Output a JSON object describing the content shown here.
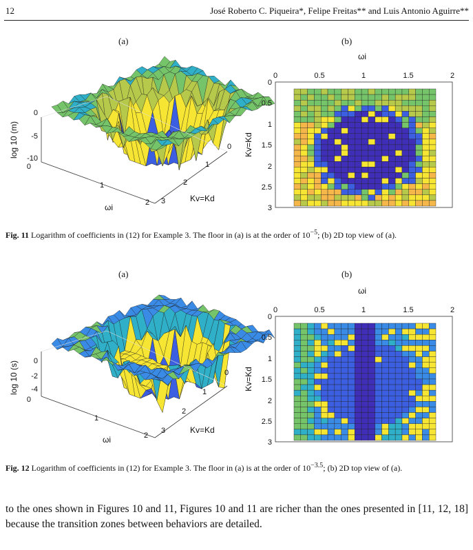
{
  "header": {
    "page_number": "12",
    "authors": "José Roberto C. Piqueira*, Felipe Freitas** and Luis Antonio Aguirre**"
  },
  "figures": [
    {
      "panel_a_label": "(a)",
      "panel_b_label": "(b)",
      "surface_zlabel": "log 10 (m)",
      "surface_zticks": [
        "0",
        "-5",
        "-10"
      ],
      "surface_zero_tick": "0",
      "surface_xticks": [
        "1",
        "2"
      ],
      "surface_xlabel": "ωi",
      "surface_yticks": [
        "0",
        "1",
        "2",
        "3"
      ],
      "surface_ylabel": "Kv=Kd",
      "top_xlabel": "ωi",
      "top_xticks": [
        "0",
        "0.5",
        "1",
        "1.5",
        "2"
      ],
      "top_ylabel": "Kv=Kd",
      "top_yticks": [
        "0",
        "0.5",
        "1",
        "1.5",
        "2",
        "2.5",
        "3"
      ],
      "caption_label": "Fig. 11",
      "caption_text": "Logarithm of coefficients in (12) for Example 3. The floor in (a) is at the order of 10",
      "caption_exp": "−5",
      "caption_tail": "; (b) 2D top view of (a)."
    },
    {
      "panel_a_label": "(a)",
      "panel_b_label": "(b)",
      "surface_zlabel": "log 10 (s)",
      "surface_zticks": [
        "0",
        "-2",
        "-4"
      ],
      "surface_zero_tick": "0",
      "surface_xticks": [
        "1",
        "2"
      ],
      "surface_xlabel": "ωi",
      "surface_yticks": [
        "0",
        "1",
        "2",
        "3"
      ],
      "surface_ylabel": "Kv=Kd",
      "top_xlabel": "ωi",
      "top_xticks": [
        "0",
        "0.5",
        "1",
        "1.5",
        "2"
      ],
      "top_ylabel": "Kv=Kd",
      "top_yticks": [
        "0",
        "0.5",
        "1",
        "1.5",
        "2",
        "2.5",
        "3"
      ],
      "caption_label": "Fig. 12",
      "caption_text": "Logarithm of coefficients in (12) for Example 3. The floor in (a) is at the order of 10",
      "caption_exp": "−3.5",
      "caption_tail": "; (b) 2D top view of (a)."
    }
  ],
  "colors": {
    "blue_dark": "#3f2fb8",
    "blue": "#3b5fe0",
    "blue_light": "#3a8be6",
    "teal": "#2fb0c8",
    "green": "#76c46a",
    "yellow_green": "#b7c94a",
    "yellow": "#f6e532",
    "orange": "#f5b74a"
  },
  "body_text": "to the ones shown in Figures 10 and 11, Figures 10 and 11 are richer than the ones presented in [11, 12, 18] because the transition zones between behaviors are detailed."
}
